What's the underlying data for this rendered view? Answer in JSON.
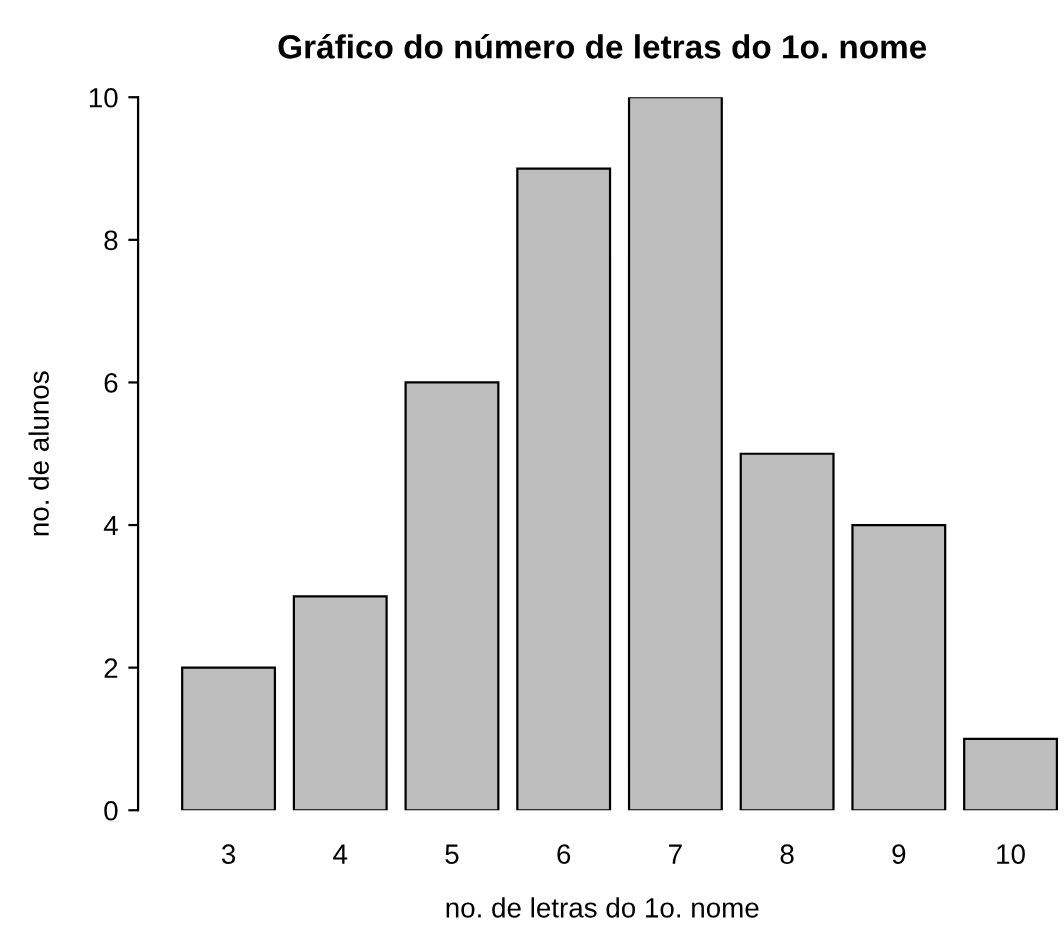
{
  "chart_data": {
    "type": "bar",
    "title": "Gráfico do número de letras do 1o. nome",
    "xlabel": "no. de letras do 1o. nome",
    "ylabel": "no. de alunos",
    "categories": [
      "3",
      "4",
      "5",
      "6",
      "7",
      "8",
      "9",
      "10"
    ],
    "values": [
      2,
      3,
      6,
      9,
      10,
      5,
      4,
      1
    ],
    "color": "#bebebe",
    "ylim": [
      0,
      10
    ],
    "yticks": [
      0,
      2,
      4,
      6,
      8,
      10
    ],
    "grid": false,
    "legend": false
  }
}
